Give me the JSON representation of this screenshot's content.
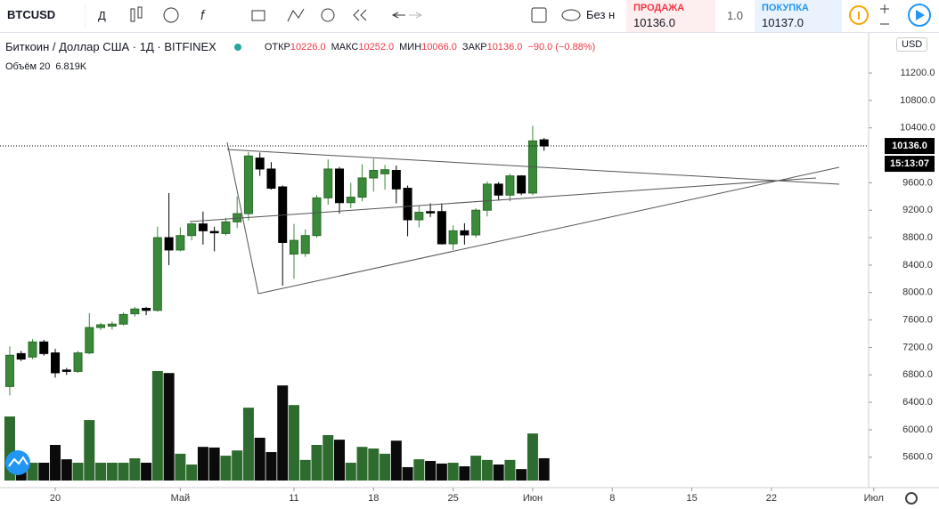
{
  "toolbar": {
    "symbol": "BTCUSD",
    "interval": "Д",
    "compare": "Без н"
  },
  "trade": {
    "sell_label": "ПРОДАЖА",
    "sell": "10136.0",
    "spread": "1.0",
    "buy_label": "ПОКУПКА",
    "buy": "10137.0"
  },
  "chart_data": {
    "type": "candlestick",
    "title": "Биткоин / Доллар США · 1Д · BITFINEX",
    "ohlc_labels": [
      {
        "label": "ОТКР",
        "value": "10226.0"
      },
      {
        "label": "МАКС",
        "value": "10252.0"
      },
      {
        "label": "МИН",
        "value": "10066.0"
      },
      {
        "label": "ЗАКР",
        "value": "10136.0"
      }
    ],
    "change": "−90.0 (−0.88%)",
    "currency": "USD",
    "up_color": "#3a8a3a",
    "down_color": "#000000",
    "open": [
      6630,
      7110,
      7060,
      7280,
      7120,
      6870,
      6850,
      7120,
      7490,
      7510,
      7540,
      7690,
      7770,
      7740,
      8800,
      8620,
      8830,
      9000,
      8890,
      8860,
      9030,
      9150,
      9960,
      9800,
      9540,
      8560,
      8570,
      8830,
      9380,
      9800,
      9310,
      9390,
      9670,
      9730,
      9780,
      9520,
      9060,
      9180,
      9180,
      8710,
      8900,
      8840,
      9200,
      9580,
      9420,
      9700,
      9450,
      10226
    ],
    "high": [
      7215,
      7150,
      7320,
      7310,
      7180,
      6900,
      7150,
      7700,
      7560,
      7580,
      7710,
      7790,
      7790,
      8960,
      9450,
      8950,
      9020,
      9180,
      8960,
      9090,
      9400,
      10050,
      10040,
      9900,
      9560,
      9000,
      8920,
      9420,
      9940,
      9830,
      9600,
      9870,
      9950,
      9860,
      9850,
      9560,
      9270,
      9300,
      9300,
      8980,
      9010,
      9230,
      9620,
      9610,
      9730,
      9710,
      10430,
      10252
    ],
    "low": [
      6500,
      7000,
      7030,
      7080,
      6760,
      6800,
      6830,
      7100,
      7450,
      7460,
      7520,
      7650,
      7670,
      7720,
      8400,
      8600,
      8760,
      8700,
      8600,
      8830,
      8940,
      9050,
      9700,
      9500,
      8100,
      8200,
      8520,
      8800,
      9280,
      9150,
      9230,
      9330,
      9470,
      9500,
      9300,
      8820,
      8950,
      9100,
      8700,
      8620,
      8700,
      8800,
      9110,
      9340,
      9330,
      9420,
      9420,
      10066
    ],
    "close": [
      7085,
      7030,
      7280,
      7110,
      6830,
      6850,
      7120,
      7490,
      7530,
      7540,
      7680,
      7760,
      7740,
      8800,
      8620,
      8830,
      9000,
      8900,
      8870,
      9030,
      9150,
      9990,
      9800,
      9520,
      8730,
      8760,
      8830,
      9380,
      9800,
      9310,
      9390,
      9670,
      9780,
      9790,
      9510,
      9060,
      9170,
      9160,
      8710,
      8900,
      8840,
      9200,
      9580,
      9420,
      9700,
      9450,
      10210,
      10136
    ],
    "volume": {
      "name": "Объём 20",
      "value_label": "6.819K",
      "up_color": "#2e6b2e",
      "down_color": "#0b0b0b",
      "values": [
        19600,
        6000,
        5450,
        5450,
        10900,
        6500,
        5450,
        18500,
        5450,
        5450,
        5450,
        6800,
        5450,
        33500,
        32900,
        8200,
        4900,
        10300,
        10100,
        7600,
        9200,
        22300,
        13100,
        8700,
        29100,
        23100,
        6300,
        10900,
        13900,
        12500,
        5450,
        10300,
        9800,
        8200,
        12200,
        4100,
        6500,
        6000,
        5200,
        5450,
        4350,
        7600,
        6300,
        4900,
        6300,
        3500,
        14400,
        6819
      ]
    },
    "ylim": [
      5195,
      11719
    ],
    "yticks": [
      {
        "value": 5600,
        "label": "5600.0"
      },
      {
        "value": 6000,
        "label": "6000.0"
      },
      {
        "value": 6400,
        "label": "6400.0"
      },
      {
        "value": 6800,
        "label": "6800.0"
      },
      {
        "value": 7200,
        "label": "7200.0"
      },
      {
        "value": 7600,
        "label": "7600.0"
      },
      {
        "value": 8000,
        "label": "8000.0"
      },
      {
        "value": 8400,
        "label": "8400.0"
      },
      {
        "value": 8800,
        "label": "8800.0"
      },
      {
        "value": 9200,
        "label": "9200.0"
      },
      {
        "value": 9600,
        "label": "9600.0"
      },
      {
        "value": 10400,
        "label": "10400.0"
      },
      {
        "value": 10800,
        "label": "10800.0"
      },
      {
        "value": 11200,
        "label": "11200.0"
      }
    ],
    "xlim": [
      -0.86,
      75.55
    ],
    "xticks": [
      {
        "value": 4,
        "label": "20"
      },
      {
        "value": 15,
        "label": "Май"
      },
      {
        "value": 25,
        "label": "11"
      },
      {
        "value": 32,
        "label": "18"
      },
      {
        "value": 39,
        "label": "25"
      },
      {
        "value": 46,
        "label": "Июн"
      },
      {
        "value": 53,
        "label": "8"
      },
      {
        "value": 60,
        "label": "15"
      },
      {
        "value": 67,
        "label": "22"
      },
      {
        "value": 76,
        "label": "Июл"
      }
    ],
    "last_price_label": "10136.0",
    "countdown": "15:13:07"
  }
}
